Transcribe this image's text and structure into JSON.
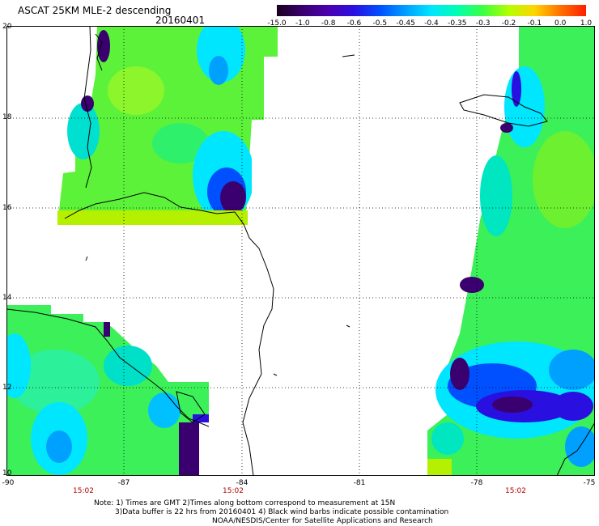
{
  "header": {
    "title": "ASCAT 25KM MLE-2 descending",
    "date": "20160401"
  },
  "colorbar": {
    "labels": [
      "-15.0",
      "-1.0",
      "-0.8",
      "-0.6",
      "-0.5",
      "-0.45",
      "-0.4",
      "-0.35",
      "-0.3",
      "-0.2",
      "-0.1",
      "0.0",
      "1.0"
    ],
    "colors": [
      "#1a0020",
      "#3a0070",
      "#4b00b0",
      "#2a10e0",
      "#0050ff",
      "#00a0ff",
      "#00e6ff",
      "#00ffb0",
      "#3cff40",
      "#b4ff00",
      "#ffd400",
      "#ff7000",
      "#ff1e00"
    ]
  },
  "map": {
    "lat_labels": [
      "20",
      "18",
      "16",
      "14",
      "12",
      "10"
    ],
    "lon_labels": [
      "-90",
      "-87",
      "-84",
      "-81",
      "-78",
      "-75"
    ],
    "time_labels": [
      "15:02",
      "15:02",
      "15:02"
    ]
  },
  "notes": {
    "line1": "Note: 1) Times are GMT 2)Times along bottom correspond to measurement at 15N",
    "line2": "3)Data buffer is 22 hrs from 20160401 4) Black wind barbs indicate possible contamination",
    "line3": "NOAA/NESDIS/Center for Satellite Applications and Research"
  }
}
